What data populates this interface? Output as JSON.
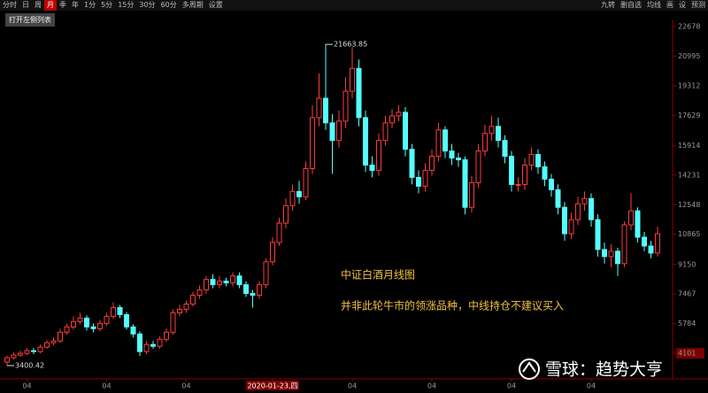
{
  "toolbar": {
    "left": [
      "分时",
      "日",
      "周",
      "月",
      "季",
      "年",
      "1分",
      "5分",
      "15分",
      "30分",
      "60分",
      "多周期",
      "设置"
    ],
    "active": 3,
    "right": [
      "九转",
      "删自选",
      "均线",
      "画",
      "设",
      "预测"
    ],
    "tooltip": "打开左侧列表"
  },
  "chart_data": {
    "type": "candlestick",
    "open": [
      3600,
      3850,
      4000,
      4100,
      4250,
      4200,
      4450,
      4700,
      4800,
      5300,
      5600,
      5900,
      6100,
      5600,
      5500,
      5800,
      6200,
      6700,
      6300,
      5600,
      5200,
      4200,
      4600,
      4500,
      4900,
      5300,
      6400,
      6600,
      6900,
      7400,
      7700,
      8300,
      8000,
      8200,
      8100,
      8500,
      8000,
      7500,
      7400,
      8000,
      9300,
      10400,
      11500,
      12500,
      13300,
      13000,
      14600,
      17500,
      18600,
      17200,
      16200,
      17300,
      19000,
      20300,
      17500,
      14800,
      14500,
      16200,
      17200,
      17600,
      17800,
      15700,
      14100,
      13600,
      14500,
      15300,
      16800,
      15600,
      15200,
      15100,
      12400,
      13800,
      15600,
      16600,
      17000,
      16200,
      15300,
      13700,
      13700,
      14800,
      15400,
      14700,
      14000,
      13400,
      12400,
      10900,
      11700,
      12600,
      12900,
      11700,
      10000,
      9600,
      9900,
      9200,
      11400,
      12200,
      10700,
      10200,
      9800
    ],
    "high": [
      3950,
      4150,
      4250,
      4400,
      4400,
      4600,
      4850,
      5000,
      5500,
      5800,
      6200,
      6400,
      6250,
      5800,
      6000,
      6400,
      7000,
      6850,
      6450,
      5750,
      5350,
      4800,
      4800,
      5050,
      5500,
      6600,
      6850,
      7100,
      7600,
      7950,
      8500,
      8600,
      8500,
      8400,
      8700,
      8700,
      8200,
      7700,
      8200,
      9500,
      10700,
      11800,
      12900,
      13700,
      13900,
      15000,
      18200,
      20000,
      21663.85,
      17700,
      17900,
      19800,
      21500,
      20800,
      17900,
      15300,
      16600,
      17600,
      18000,
      18200,
      18100,
      16000,
      14500,
      14900,
      15700,
      17200,
      17000,
      16000,
      15500,
      15300,
      14200,
      16000,
      17100,
      17600,
      17500,
      16500,
      15600,
      14100,
      15200,
      15800,
      15700,
      15000,
      14300,
      13700,
      12700,
      12100,
      13000,
      13300,
      13200,
      12000,
      10400,
      10300,
      10100,
      11600,
      13200,
      12400,
      11000,
      10500,
      11300
    ],
    "low": [
      3400.42,
      3750,
      3900,
      4000,
      4050,
      4100,
      4350,
      4550,
      4700,
      5150,
      5450,
      5750,
      5400,
      5300,
      5350,
      5650,
      6050,
      6100,
      5450,
      5000,
      3950,
      4050,
      4350,
      4350,
      4750,
      5150,
      6200,
      6400,
      6750,
      7200,
      7500,
      7800,
      7800,
      7900,
      7900,
      7800,
      7300,
      6700,
      7200,
      7800,
      9100,
      10200,
      11200,
      12200,
      12600,
      12800,
      14300,
      17000,
      16800,
      14300,
      15800,
      16900,
      18600,
      17000,
      14400,
      14100,
      14200,
      15900,
      16900,
      17300,
      15300,
      13700,
      13200,
      13300,
      14200,
      15000,
      15200,
      14800,
      14700,
      12000,
      12100,
      13500,
      15300,
      16200,
      15800,
      14900,
      13300,
      13300,
      13400,
      14500,
      14300,
      13600,
      13000,
      12000,
      10500,
      10600,
      11400,
      12200,
      11300,
      9600,
      9200,
      9000,
      8500,
      9000,
      11100,
      10400,
      9900,
      9500,
      9600
    ],
    "close": [
      3850,
      4000,
      4100,
      4250,
      4200,
      4450,
      4700,
      4800,
      5300,
      5600,
      5900,
      6100,
      5600,
      5500,
      5800,
      6200,
      6700,
      6300,
      5600,
      5200,
      4200,
      4600,
      4500,
      4900,
      5300,
      6400,
      6600,
      6900,
      7400,
      7700,
      8300,
      8000,
      8200,
      8100,
      8500,
      8000,
      7500,
      7400,
      8000,
      9300,
      10400,
      11500,
      12500,
      13300,
      13000,
      14600,
      17500,
      18600,
      17200,
      16200,
      17300,
      19000,
      20300,
      17500,
      14800,
      14500,
      16200,
      17200,
      17600,
      17800,
      15700,
      14100,
      13600,
      14500,
      15300,
      16800,
      15600,
      15200,
      15100,
      12400,
      13800,
      15600,
      16600,
      17000,
      16200,
      15300,
      13700,
      13700,
      14800,
      15400,
      14700,
      14000,
      13400,
      12400,
      10900,
      11700,
      12600,
      12900,
      11700,
      10000,
      9600,
      9900,
      9200,
      11400,
      12200,
      10700,
      10200,
      9800,
      10900
    ],
    "ylim": [
      2648,
      23079
    ],
    "yticks": [
      22678,
      20995,
      19312,
      17629,
      15914,
      14231,
      12548,
      10865,
      9150,
      7467,
      5784,
      4101
    ],
    "xticks": [
      {
        "value": 3,
        "label": "04"
      },
      {
        "value": 15,
        "label": "04"
      },
      {
        "value": 27,
        "label": "04"
      },
      {
        "value": 40,
        "label": "2020-01-23,四"
      },
      {
        "value": 52,
        "label": "04"
      },
      {
        "value": 64,
        "label": "04"
      },
      {
        "value": 76,
        "label": "04"
      },
      {
        "value": 88,
        "label": "04"
      }
    ],
    "up_color": "#ff3c3c",
    "down_color": "#54ffff",
    "title": "中证白酒月线图",
    "note": "并非此轮牛市的领涨品种，中线持仓不建议买入"
  },
  "watermark": "雪球：趋势大亨"
}
